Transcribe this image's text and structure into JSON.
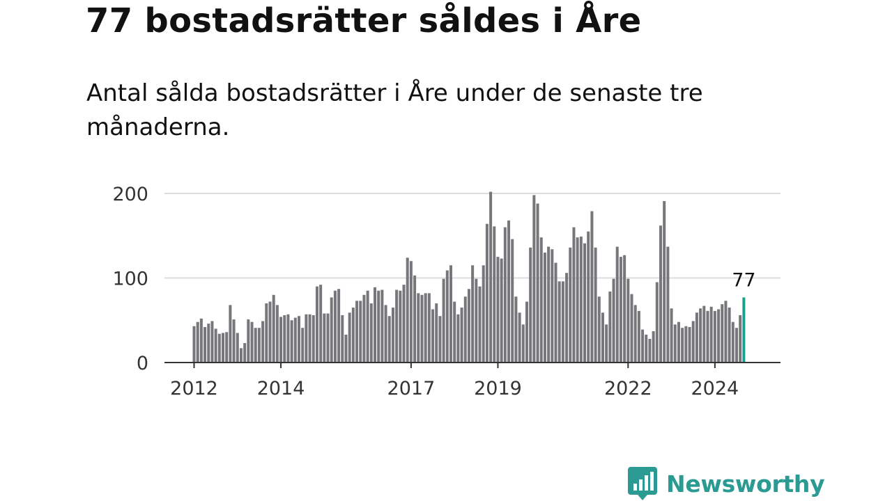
{
  "header": {
    "title": "77 bostadsrätter såldes i Åre",
    "subtitle": "Antal sålda bostadsrätter i Åre under de senaste tre månaderna."
  },
  "brand": {
    "name": "Newsworthy",
    "color": "#2a9a92",
    "icon": "newsworthy-logo-icon"
  },
  "chart_data": {
    "type": "bar",
    "title": "",
    "xlabel": "",
    "ylabel": "",
    "ylim": [
      0,
      200
    ],
    "grid": true,
    "y_ticks": [
      0,
      100,
      200
    ],
    "x_ticks": [
      {
        "label": "2012",
        "index": 0
      },
      {
        "label": "2014",
        "index": 24
      },
      {
        "label": "2017",
        "index": 60
      },
      {
        "label": "2019",
        "index": 84
      },
      {
        "label": "2022",
        "index": 120
      },
      {
        "label": "2024",
        "index": 144
      }
    ],
    "bar_color": "#76767b",
    "highlight_color": "#1e9e93",
    "highlight_label": "77",
    "series": [
      {
        "values": [
          43,
          48,
          52,
          42,
          46,
          49,
          40,
          34,
          35,
          36,
          68,
          51,
          35,
          17,
          23,
          51,
          48,
          41,
          41,
          49,
          70,
          72,
          80,
          68,
          54,
          56,
          57,
          50,
          53,
          55,
          41,
          57,
          57,
          56,
          90,
          92,
          58,
          58,
          77,
          85,
          87,
          56,
          33,
          59,
          65,
          73,
          73,
          80,
          85,
          70,
          89,
          85,
          86,
          68,
          55,
          65,
          86,
          85,
          92,
          124,
          120,
          103,
          82,
          80,
          82,
          82,
          63,
          70,
          55,
          99,
          109,
          115,
          72,
          57,
          65,
          78,
          87,
          115,
          99,
          90,
          115,
          164,
          202,
          161,
          125,
          123,
          160,
          168,
          146,
          78,
          59,
          45,
          72,
          136,
          198,
          188,
          148,
          130,
          137,
          134,
          118,
          96,
          96,
          106,
          136,
          160,
          148,
          149,
          141,
          155,
          179,
          136,
          78,
          59,
          45,
          84,
          99,
          137,
          125,
          127,
          99,
          81,
          68,
          61,
          39,
          33,
          28,
          37,
          95,
          162,
          191,
          137,
          64,
          45,
          48,
          41,
          43,
          42,
          49,
          59,
          64,
          67,
          61,
          66,
          61,
          63,
          69,
          73,
          65,
          48,
          41,
          56,
          77
        ]
      }
    ]
  }
}
